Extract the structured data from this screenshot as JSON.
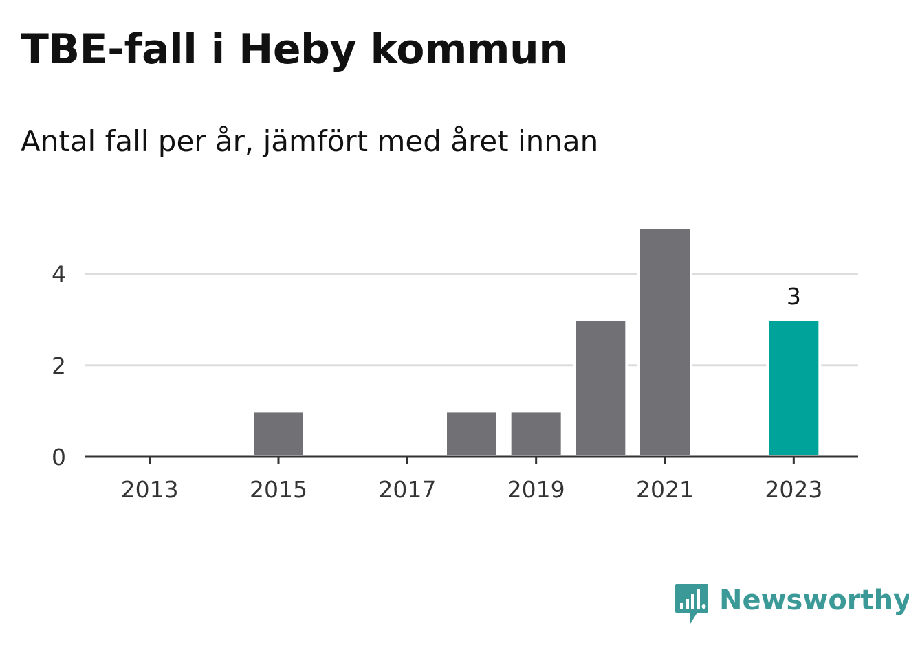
{
  "title": "TBE-fall i Heby kommun",
  "subtitle": "Antal fall per år, jämfört med året innan",
  "brand": {
    "name": "Newsworthy",
    "color": "#3b9a97",
    "icon": "newsworthy-logo-icon"
  },
  "colors": {
    "bar": "#707075",
    "highlight": "#00a39a",
    "grid": "#dddddd",
    "axis": "#333333"
  },
  "chart_data": {
    "type": "bar",
    "title": "TBE-fall i Heby kommun",
    "subtitle": "Antal fall per år, jämfört med året innan",
    "xlabel": "",
    "ylabel": "",
    "categories": [
      "2013",
      "2014",
      "2015",
      "2016",
      "2017",
      "2018",
      "2019",
      "2020",
      "2021",
      "2022",
      "2023"
    ],
    "values": [
      0,
      0,
      1,
      0,
      0,
      1,
      1,
      3,
      5,
      0,
      3
    ],
    "highlight_index": 10,
    "highlight_label": "3",
    "x_tick_labels": [
      "2013",
      "2015",
      "2017",
      "2019",
      "2021",
      "2023"
    ],
    "y_ticks": [
      0,
      2,
      4
    ],
    "y_tick_labels": [
      "0",
      "2",
      "4"
    ],
    "ylim": [
      0,
      5
    ],
    "grid": true,
    "legend": false
  }
}
